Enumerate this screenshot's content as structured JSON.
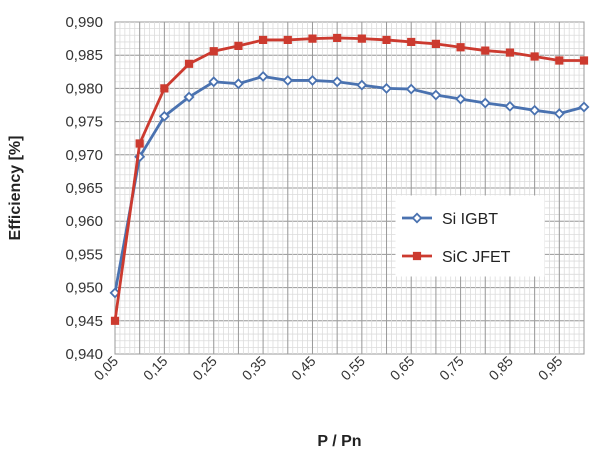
{
  "chart_data": {
    "type": "line",
    "xlabel": "P / Pn",
    "ylabel": "Efficiency [%]",
    "ylim": [
      0.94,
      0.99
    ],
    "y_ticks": [
      "0,940",
      "0,945",
      "0,950",
      "0,955",
      "0,960",
      "0,965",
      "0,970",
      "0,975",
      "0,980",
      "0,985",
      "0,990"
    ],
    "x_ticks": [
      "0,05",
      "0,15",
      "0,25",
      "0,35",
      "0,45",
      "0,55",
      "0,65",
      "0,75",
      "0,85",
      "0,95"
    ],
    "x": [
      0.05,
      0.1,
      0.15,
      0.2,
      0.25,
      0.3,
      0.35,
      0.4,
      0.45,
      0.5,
      0.55,
      0.6,
      0.65,
      0.7,
      0.75,
      0.8,
      0.85,
      0.9,
      0.95,
      1.0
    ],
    "grid": true,
    "legend_position": "right",
    "series": [
      {
        "name": "Si IGBT",
        "color": "#4a72b0",
        "marker": "diamond",
        "values": [
          0.9492,
          0.9697,
          0.9758,
          0.9787,
          0.981,
          0.9807,
          0.9818,
          0.9812,
          0.9812,
          0.981,
          0.9805,
          0.98,
          0.9799,
          0.979,
          0.9784,
          0.9778,
          0.9773,
          0.9767,
          0.9762,
          0.9772
        ]
      },
      {
        "name": "SiC JFET",
        "color": "#cc3a2f",
        "marker": "square",
        "values": [
          0.945,
          0.9717,
          0.98,
          0.9837,
          0.9856,
          0.9864,
          0.9873,
          0.9873,
          0.9875,
          0.9876,
          0.9875,
          0.9873,
          0.987,
          0.9867,
          0.9862,
          0.9857,
          0.9854,
          0.9848,
          0.9842,
          0.9842
        ]
      }
    ]
  }
}
